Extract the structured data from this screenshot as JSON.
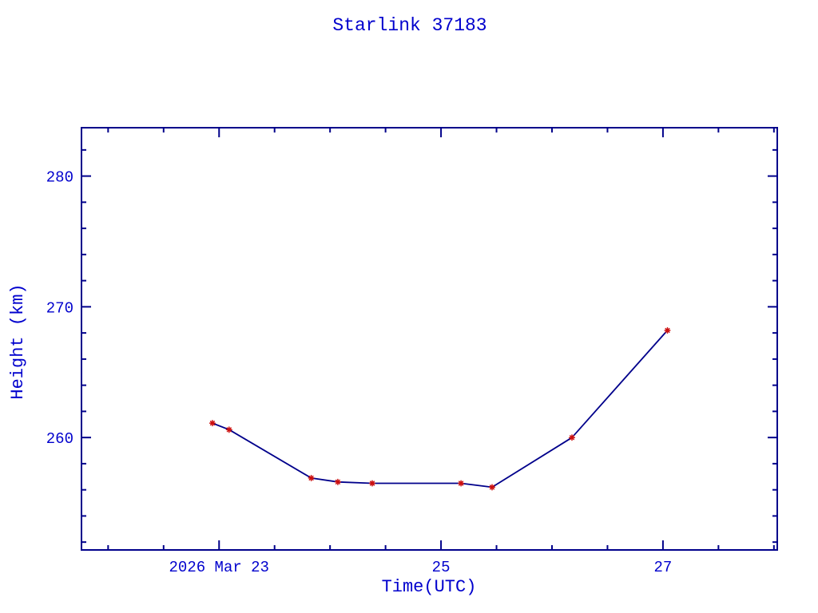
{
  "page": {
    "background": "#ffffff"
  },
  "chart_data": {
    "type": "line",
    "title": "Starlink 37183",
    "xlabel": "Time(UTC)",
    "ylabel": "Height (km)",
    "x_unit": "day of March 2026 (UTC)",
    "x": [
      22.94,
      23.09,
      23.83,
      24.07,
      24.38,
      25.18,
      25.46,
      26.18,
      27.04
    ],
    "y": [
      261.1,
      260.6,
      256.9,
      256.6,
      256.5,
      256.5,
      256.2,
      260.0,
      268.2
    ],
    "xlim": [
      21.76,
      28.03
    ],
    "ylim": [
      251.4,
      283.7
    ],
    "x_major_ticks": [
      {
        "value": 23,
        "label": "2026 Mar 23"
      },
      {
        "value": 25,
        "label": "25"
      },
      {
        "value": 27,
        "label": "27"
      }
    ],
    "x_minor_step": 0.5,
    "y_major_ticks": [
      {
        "value": 260,
        "label": "260"
      },
      {
        "value": 270,
        "label": "270"
      },
      {
        "value": 280,
        "label": "280"
      }
    ],
    "y_minor_step": 2,
    "grid": false,
    "legend": null,
    "marker": "asterisk",
    "colors": {
      "axis": "#00008B",
      "line": "#00008B",
      "marker": "#CC1010",
      "text": "#0000CD"
    }
  }
}
